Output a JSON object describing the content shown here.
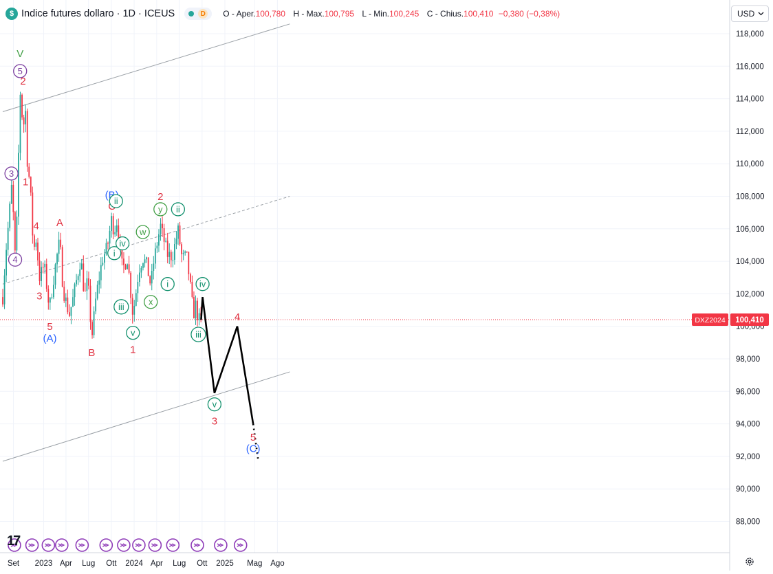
{
  "header": {
    "logo_glyph": "$",
    "title": "Indice futures dollaro · 1D · ICEUS",
    "d_badge": "D",
    "open_label": "O - Aper.",
    "open": "100,780",
    "high_label": "H - Max.",
    "high": "100,795",
    "low_label": "L - Min.",
    "low": "100,245",
    "close_label": "C - Chius.",
    "close": "100,410",
    "change": "−0,380 (−0,38%)"
  },
  "currency_select": {
    "value": "USD",
    "icon": "chevron-down-icon"
  },
  "price_tag": {
    "symbol": "DXZ2024",
    "price": "100,410"
  },
  "tv_logo": "17",
  "settings_icon": "gear-icon",
  "event_icon": "forward-arrow-icon",
  "colors": {
    "up": "#26a69a",
    "down": "#f23645",
    "wave_red": "#e03040",
    "wave_blue": "#2962ff",
    "wave_purple": "#7b3fa0",
    "wave_green": "#43a047",
    "wave_teal": "#12906d",
    "grid": "#f0f3fa",
    "channel": "#9aa0a6"
  },
  "chart_data": {
    "type": "candlestick",
    "title": "Indice futures dollaro · 1D · ICEUS",
    "y_axis": {
      "ylim": [
        86.5,
        119
      ],
      "ticks": [
        "118,000",
        "116,000",
        "114,000",
        "112,000",
        "110,000",
        "108,000",
        "106,000",
        "104,000",
        "102,000",
        "100,000",
        "98,000",
        "96,000",
        "94,000",
        "92,000",
        "90,000",
        "88,000"
      ],
      "position": "right"
    },
    "x_axis": {
      "ticks": [
        "Set",
        "2023",
        "Apr",
        "Lug",
        "Ott",
        "2024",
        "Apr",
        "Lug",
        "Ott",
        "2025",
        "Mag",
        "Ago"
      ]
    },
    "grid": true,
    "last_price": 100.41,
    "price_path": [
      [
        "2022-07-20",
        101.8
      ],
      [
        "2022-08-01",
        104.5
      ],
      [
        "2022-08-15",
        106.8
      ],
      [
        "2022-08-24",
        108.6
      ],
      [
        "2022-09-02",
        106.5
      ],
      [
        "2022-09-08",
        104.2
      ],
      [
        "2022-09-15",
        106.5
      ],
      [
        "2022-09-28",
        114.5
      ],
      [
        "2022-10-10",
        112.2
      ],
      [
        "2022-10-20",
        113.2
      ],
      [
        "2022-10-28",
        109.8
      ],
      [
        "2022-11-08",
        108.7
      ],
      [
        "2022-11-15",
        106.0
      ],
      [
        "2022-11-25",
        104.8
      ],
      [
        "2022-12-02",
        105.4
      ],
      [
        "2022-12-15",
        103.0
      ],
      [
        "2023-01-03",
        103.8
      ],
      [
        "2023-01-20",
        101.6
      ],
      [
        "2023-01-26",
        101.3
      ],
      [
        "2023-02-20",
        104.0
      ],
      [
        "2023-03-07",
        105.3
      ],
      [
        "2023-03-20",
        102.3
      ],
      [
        "2023-04-14",
        100.7
      ],
      [
        "2023-04-28",
        101.6
      ],
      [
        "2023-05-31",
        104.2
      ],
      [
        "2023-06-15",
        101.8
      ],
      [
        "2023-06-28",
        102.9
      ],
      [
        "2023-07-14",
        99.3
      ],
      [
        "2023-08-01",
        101.9
      ],
      [
        "2023-08-25",
        104.1
      ],
      [
        "2023-09-15",
        104.9
      ],
      [
        "2023-10-03",
        106.7
      ],
      [
        "2023-10-13",
        105.6
      ],
      [
        "2023-10-20",
        106.8
      ],
      [
        "2023-11-15",
        103.5
      ],
      [
        "2023-12-05",
        104.2
      ],
      [
        "2023-12-27",
        100.7
      ],
      [
        "2024-01-10",
        102.3
      ],
      [
        "2024-01-20",
        103.5
      ],
      [
        "2024-02-05",
        104.2
      ],
      [
        "2024-02-20",
        103.8
      ],
      [
        "2024-03-08",
        102.5
      ],
      [
        "2024-03-20",
        104.0
      ],
      [
        "2024-04-16",
        106.2
      ],
      [
        "2024-04-25",
        105.6
      ],
      [
        "2024-05-15",
        104.4
      ],
      [
        "2024-06-03",
        104.3
      ],
      [
        "2024-06-26",
        105.9
      ],
      [
        "2024-07-12",
        104.2
      ],
      [
        "2024-07-31",
        104.3
      ],
      [
        "2024-08-14",
        102.5
      ],
      [
        "2024-08-27",
        100.7
      ],
      [
        "2024-09-05",
        101.3
      ],
      [
        "2024-09-16",
        100.4
      ],
      [
        "2024-09-27",
        100.4
      ]
    ],
    "projection": [
      [
        "2024-09-27",
        100.4
      ],
      [
        "2024-10-03",
        101.8
      ],
      [
        "2024-11-20",
        95.9
      ],
      [
        "2025-02-20",
        100.0
      ],
      [
        "2025-04-25",
        94.0
      ]
    ],
    "projection_dotted": [
      [
        "2025-04-25",
        94.0
      ],
      [
        "2025-05-15",
        91.8
      ]
    ],
    "channel": {
      "upper": [
        [
          "2022-07-20",
          113.2
        ],
        [
          "2025-09-20",
          118.6
        ]
      ],
      "lower": [
        [
          "2022-07-20",
          91.7
        ],
        [
          "2025-09-20",
          97.2
        ]
      ],
      "middle_dashed": [
        [
          "2022-07-20",
          102.6
        ],
        [
          "2025-09-20",
          108.0
        ]
      ]
    },
    "labels": [
      {
        "text": "V",
        "date": "2022-09-28",
        "price": 116.8,
        "color": "wave_green",
        "circle": false
      },
      {
        "text": "5",
        "date": "2022-09-28",
        "price": 115.7,
        "color": "wave_purple",
        "circle": true
      },
      {
        "text": "2",
        "date": "2022-10-10",
        "price": 115.1,
        "color": "wave_red",
        "circle": false
      },
      {
        "text": "3",
        "date": "2022-08-24",
        "price": 109.4,
        "color": "wave_purple",
        "circle": true
      },
      {
        "text": "4",
        "date": "2022-09-08",
        "price": 104.1,
        "color": "wave_purple",
        "circle": true
      },
      {
        "text": "1",
        "date": "2022-10-20",
        "price": 108.9,
        "color": "wave_red",
        "circle": false
      },
      {
        "text": "4",
        "date": "2022-12-02",
        "price": 106.2,
        "color": "wave_red",
        "circle": false
      },
      {
        "text": "3",
        "date": "2022-12-15",
        "price": 101.9,
        "color": "wave_red",
        "circle": false
      },
      {
        "text": "A",
        "date": "2023-03-07",
        "price": 106.4,
        "color": "wave_red",
        "circle": false
      },
      {
        "text": "5",
        "date": "2023-01-26",
        "price": 100.0,
        "color": "wave_red",
        "circle": false
      },
      {
        "text": "(A)",
        "date": "2023-01-26",
        "price": 99.3,
        "color": "wave_blue",
        "circle": false
      },
      {
        "text": "B",
        "date": "2023-07-14",
        "price": 98.4,
        "color": "wave_red",
        "circle": false
      },
      {
        "text": "(B)",
        "date": "2023-10-03",
        "price": 108.1,
        "color": "wave_blue",
        "circle": false
      },
      {
        "text": "C",
        "date": "2023-10-03",
        "price": 107.4,
        "color": "wave_red",
        "circle": false
      },
      {
        "text": "ii",
        "date": "2023-10-20",
        "price": 107.7,
        "color": "wave_teal",
        "circle": true
      },
      {
        "text": "i",
        "date": "2023-10-13",
        "price": 104.5,
        "color": "wave_teal",
        "circle": true
      },
      {
        "text": "iv",
        "date": "2023-11-15",
        "price": 105.1,
        "color": "wave_teal",
        "circle": true
      },
      {
        "text": "iii",
        "date": "2023-11-10",
        "price": 101.2,
        "color": "wave_teal",
        "circle": true
      },
      {
        "text": "v",
        "date": "2023-12-27",
        "price": 99.6,
        "color": "wave_teal",
        "circle": true
      },
      {
        "text": "1",
        "date": "2023-12-27",
        "price": 98.6,
        "color": "wave_red",
        "circle": false
      },
      {
        "text": "w",
        "date": "2024-02-05",
        "price": 105.8,
        "color": "wave_green",
        "circle": true
      },
      {
        "text": "x",
        "date": "2024-03-08",
        "price": 101.5,
        "color": "wave_green",
        "circle": true
      },
      {
        "text": "2",
        "date": "2024-04-16",
        "price": 108.0,
        "color": "wave_red",
        "circle": false
      },
      {
        "text": "y",
        "date": "2024-04-16",
        "price": 107.2,
        "color": "wave_green",
        "circle": true
      },
      {
        "text": "ii",
        "date": "2024-06-26",
        "price": 107.2,
        "color": "wave_teal",
        "circle": true
      },
      {
        "text": "i",
        "date": "2024-05-15",
        "price": 102.6,
        "color": "wave_teal",
        "circle": true
      },
      {
        "text": "iv",
        "date": "2024-10-03",
        "price": 102.6,
        "color": "wave_teal",
        "circle": true
      },
      {
        "text": "iii",
        "date": "2024-09-16",
        "price": 99.5,
        "color": "wave_teal",
        "circle": true
      },
      {
        "text": "v",
        "date": "2024-11-20",
        "price": 95.2,
        "color": "wave_teal",
        "circle": true
      },
      {
        "text": "3",
        "date": "2024-11-20",
        "price": 94.2,
        "color": "wave_red",
        "circle": false
      },
      {
        "text": "4",
        "date": "2025-02-20",
        "price": 100.6,
        "color": "wave_red",
        "circle": false
      },
      {
        "text": "5",
        "date": "2025-04-25",
        "price": 93.2,
        "color": "wave_red",
        "circle": false
      },
      {
        "text": "(C)",
        "date": "2025-04-25",
        "price": 92.5,
        "color": "wave_blue",
        "circle": false
      }
    ],
    "event_markers": [
      "2022-09-05",
      "2022-11-15",
      "2023-01-20",
      "2023-03-15",
      "2023-06-05",
      "2023-09-10",
      "2023-11-20",
      "2024-01-20",
      "2024-03-25",
      "2024-06-05",
      "2024-09-12",
      "2024-12-15",
      "2025-03-05"
    ]
  }
}
